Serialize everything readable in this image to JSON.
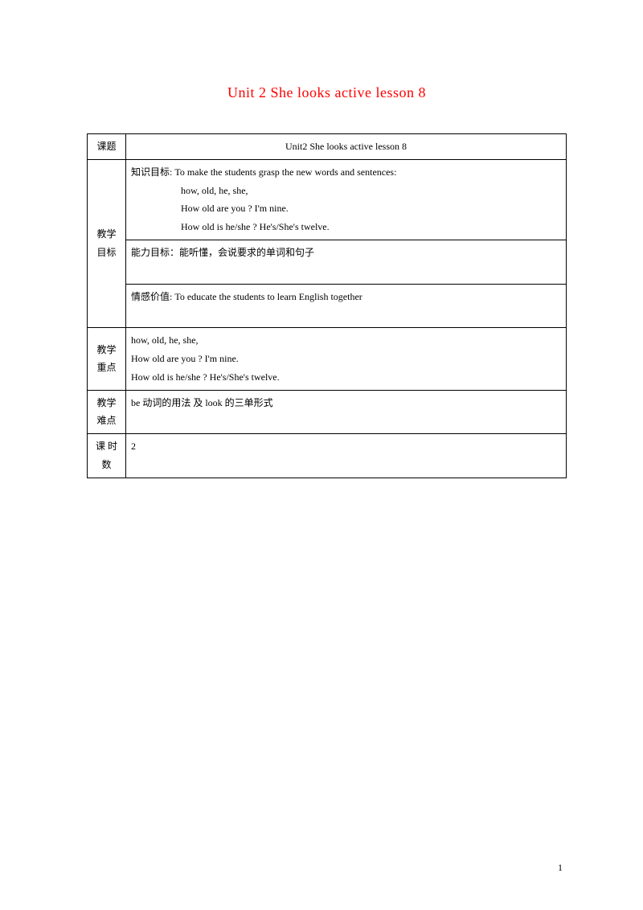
{
  "title": "Unit 2 She looks active lesson 8",
  "table": {
    "row1": {
      "label": "课题",
      "content": "Unit2 She looks active    lesson 8"
    },
    "row2": {
      "label": "教学目标",
      "goal1_line1": "知识目标: To make the students grasp the new words and sentences:",
      "goal1_line2": "how, old, he, she,",
      "goal1_line3": "How old are you ?    I'm nine.",
      "goal1_line4": "How old is he/she ?   He's/She's twelve.",
      "goal2": "能力目标：能听懂，会说要求的单词和句子",
      "goal3": "情感价值: To educate the students to learn English together"
    },
    "row3": {
      "label": "教学重点",
      "line1": "how, old, he, she,",
      "line2": "How old are you ?    I'm nine.",
      "line3": "How old is he/she ?   He's/She's twelve."
    },
    "row4": {
      "label": "教学难点",
      "content": "be 动词的用法 及 look 的三单形式"
    },
    "row5": {
      "label": "课 时数",
      "content": "2"
    }
  },
  "pageNumber": "1",
  "styles": {
    "titleColor": "#ff0000",
    "textColor": "#000000",
    "borderColor": "#000000",
    "backgroundColor": "#ffffff",
    "titleFontSize": 18,
    "bodyFontSize": 12
  }
}
